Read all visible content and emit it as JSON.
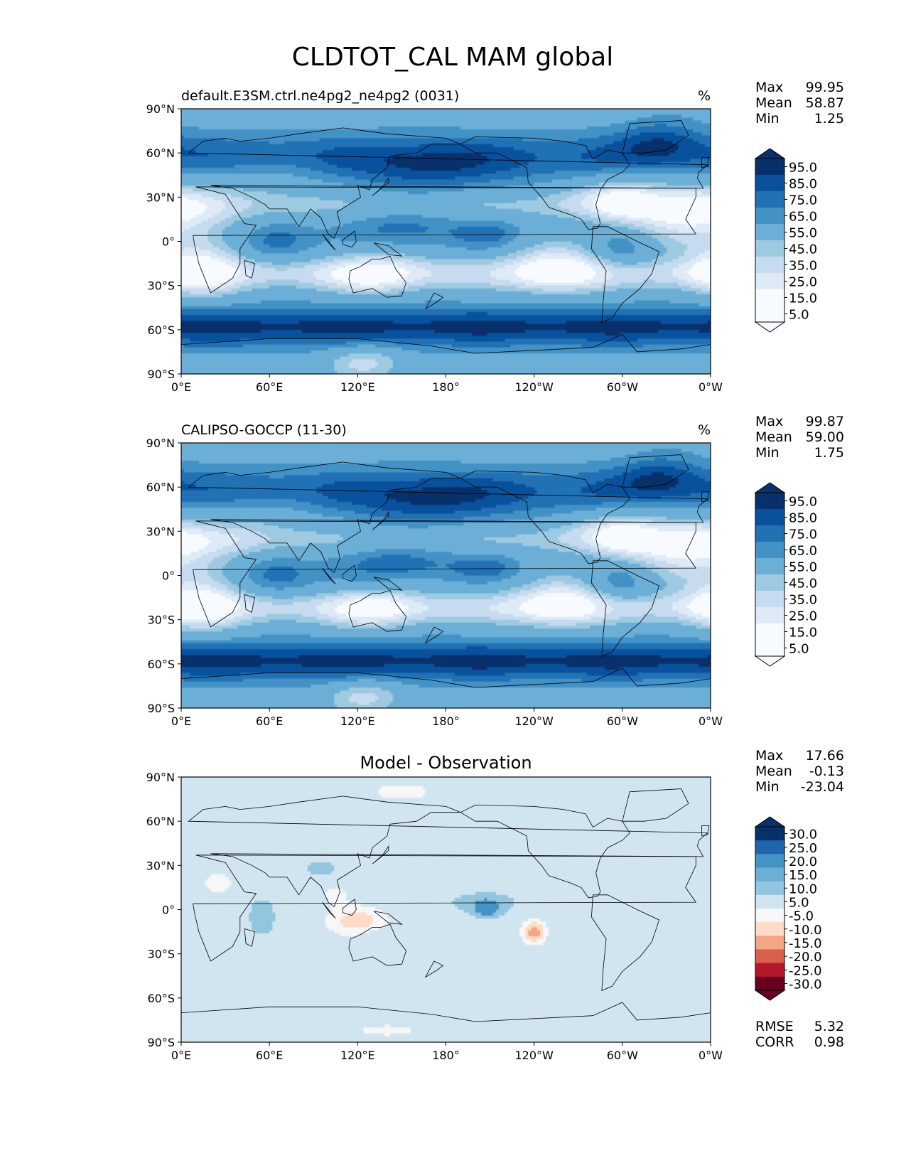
{
  "figure_title": "CLDTOT_CAL MAM global",
  "colors": {
    "blues": [
      "#f7fbff",
      "#deebf7",
      "#c6dbef",
      "#9ecae1",
      "#6baed6",
      "#4292c6",
      "#2171b5",
      "#08519c",
      "#08306b"
    ],
    "diff": [
      "#67001f",
      "#b2182b",
      "#d6604d",
      "#f4a582",
      "#fddbc7",
      "#f7f7f7",
      "#d1e5f0",
      "#92c5de",
      "#4393c3",
      "#2166ac",
      "#053061"
    ],
    "land": "#000000"
  },
  "chart_data": [
    {
      "type": "heatmap",
      "title": "default.E3SM.ctrl.ne4pg2_ne4pg2 (0031)",
      "units": "%",
      "x_ticks": [
        "0°E",
        "60°E",
        "120°E",
        "180°",
        "120°W",
        "60°W",
        "0°W"
      ],
      "y_ticks": [
        "90°N",
        "60°N",
        "30°N",
        "0°",
        "30°S",
        "60°S",
        "90°S"
      ],
      "xlim": [
        0,
        360
      ],
      "ylim": [
        -90,
        90
      ],
      "stats": [
        {
          "label": "Max",
          "value": "99.95"
        },
        {
          "label": "Mean",
          "value": "58.87"
        },
        {
          "label": "Min",
          "value": "1.25"
        }
      ],
      "colorbar_levels": [
        "95.0",
        "85.0",
        "75.0",
        "65.0",
        "55.0",
        "45.0",
        "35.0",
        "25.0",
        "15.0",
        "5.0"
      ],
      "field_kind": "cloud"
    },
    {
      "type": "heatmap",
      "title": "CALIPSO-GOCCP (11-30)",
      "units": "%",
      "x_ticks": [
        "0°E",
        "60°E",
        "120°E",
        "180°",
        "120°W",
        "60°W",
        "0°W"
      ],
      "y_ticks": [
        "90°N",
        "60°N",
        "30°N",
        "0°",
        "30°S",
        "60°S",
        "90°S"
      ],
      "xlim": [
        0,
        360
      ],
      "ylim": [
        -90,
        90
      ],
      "stats": [
        {
          "label": "Max",
          "value": "99.87"
        },
        {
          "label": "Mean",
          "value": "59.00"
        },
        {
          "label": "Min",
          "value": "1.75"
        }
      ],
      "colorbar_levels": [
        "95.0",
        "85.0",
        "75.0",
        "65.0",
        "55.0",
        "45.0",
        "35.0",
        "25.0",
        "15.0",
        "5.0"
      ],
      "field_kind": "cloud"
    },
    {
      "type": "heatmap",
      "title": "Model - Observation",
      "units": "",
      "x_ticks": [
        "0°E",
        "60°E",
        "120°E",
        "180°",
        "120°W",
        "60°W",
        "0°W"
      ],
      "y_ticks": [
        "90°N",
        "60°N",
        "30°N",
        "0°",
        "30°S",
        "60°S",
        "90°S"
      ],
      "xlim": [
        0,
        360
      ],
      "ylim": [
        -90,
        90
      ],
      "stats": [
        {
          "label": "Max",
          "value": "17.66"
        },
        {
          "label": "Mean",
          "value": "-0.13"
        },
        {
          "label": "Min",
          "value": "-23.04"
        }
      ],
      "colorbar_levels": [
        "30.0",
        "25.0",
        "20.0",
        "15.0",
        "10.0",
        "5.0",
        "-5.0",
        "-10.0",
        "-15.0",
        "-20.0",
        "-25.0",
        "-30.0"
      ],
      "extra_stats": [
        {
          "label": "RMSE",
          "value": "5.32"
        },
        {
          "label": "CORR",
          "value": "0.98"
        }
      ],
      "field_kind": "diff"
    }
  ]
}
